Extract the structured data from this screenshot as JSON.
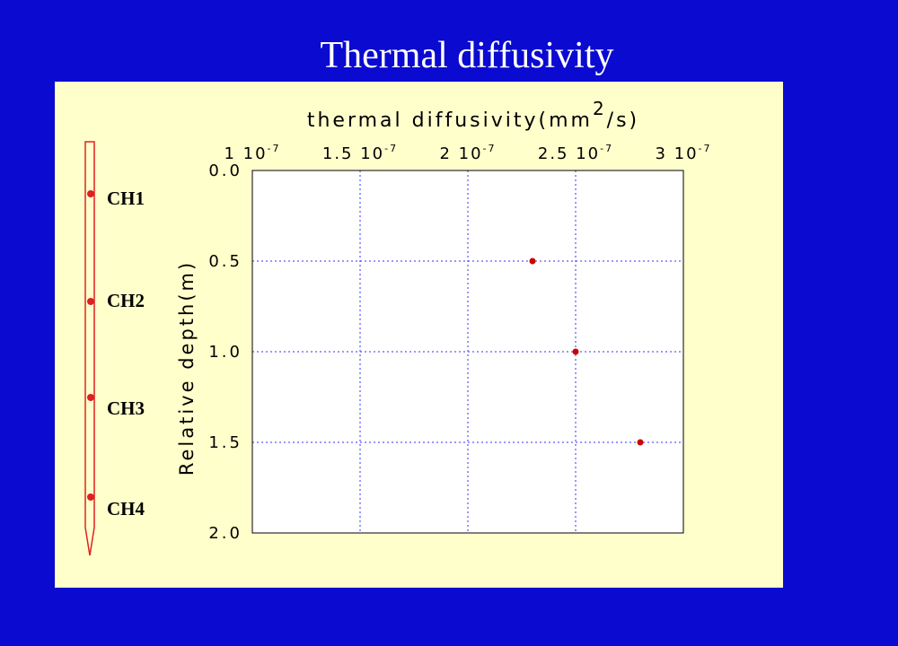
{
  "slide": {
    "title": "Thermal diffusivity",
    "background_color": "#0a0ad0",
    "panel_color": "#ffffcc"
  },
  "probe": {
    "channels": [
      "CH1",
      "CH2",
      "CH3",
      "CH4"
    ],
    "color": "#e02020"
  },
  "chart_data": {
    "type": "scatter",
    "title": "",
    "xlabel": "thermal diffusivity(mm2/s)",
    "xlabel_main": "thermal diffusivity(mm",
    "xlabel_superscript": "2",
    "xlabel_tail": "/s)",
    "ylabel": "Relative depth(m)",
    "xlim": [
      1e-07,
      3e-07
    ],
    "ylim": [
      0,
      2.0
    ],
    "y_inverted": true,
    "x_axis_position": "top",
    "grid": true,
    "marker_color": "#cc0000",
    "x_ticks": [
      {
        "value": 1e-07,
        "mantissa": "1",
        "base": "10",
        "exponent": "-7"
      },
      {
        "value": 1.5e-07,
        "mantissa": "1.5",
        "base": "10",
        "exponent": "-7"
      },
      {
        "value": 2e-07,
        "mantissa": "2",
        "base": "10",
        "exponent": "-7"
      },
      {
        "value": 2.5e-07,
        "mantissa": "2.5",
        "base": "10",
        "exponent": "-7"
      },
      {
        "value": 3e-07,
        "mantissa": "3",
        "base": "10",
        "exponent": "-7"
      }
    ],
    "y_ticks": [
      {
        "value": 0,
        "label": "0.0"
      },
      {
        "value": 0.5,
        "label": "0.5"
      },
      {
        "value": 1.0,
        "label": "1.0"
      },
      {
        "value": 1.5,
        "label": "1.5"
      },
      {
        "value": 2.0,
        "label": "2.0"
      }
    ],
    "series": [
      {
        "points": [
          {
            "x": 2.3e-07,
            "y": 0.5
          },
          {
            "x": 2.5e-07,
            "y": 1.0
          },
          {
            "x": 2.8e-07,
            "y": 1.5
          }
        ]
      }
    ]
  }
}
